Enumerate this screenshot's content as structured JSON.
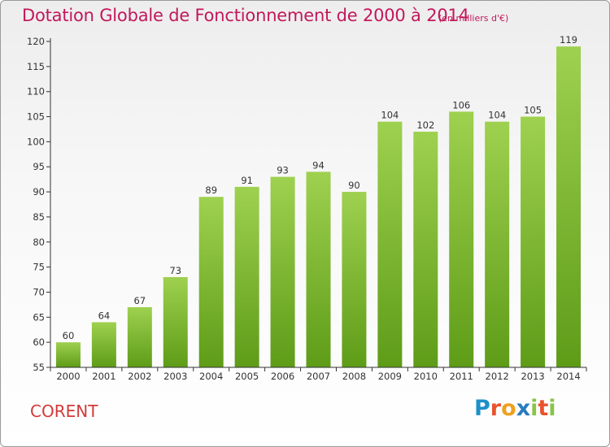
{
  "chart_data": {
    "type": "bar",
    "title": "Dotation Globale de Fonctionnement de 2000 à 2014",
    "subtitle": "(en milliers d'€)",
    "categories": [
      "2000",
      "2001",
      "2002",
      "2003",
      "2004",
      "2005",
      "2006",
      "2007",
      "2008",
      "2009",
      "2010",
      "2011",
      "2012",
      "2013",
      "2014"
    ],
    "values": [
      60,
      64,
      67,
      73,
      89,
      91,
      93,
      94,
      90,
      104,
      102,
      106,
      104,
      105,
      119
    ],
    "ylim": [
      55,
      120
    ],
    "yticks": [
      55,
      60,
      65,
      70,
      75,
      80,
      85,
      90,
      95,
      100,
      105,
      110,
      115,
      120
    ],
    "grid": false,
    "bar_color": "#8cc63f",
    "bar_color_dark": "#5a9a1a"
  },
  "footer": {
    "commune": "CORENT",
    "logo": "Proxiti"
  }
}
